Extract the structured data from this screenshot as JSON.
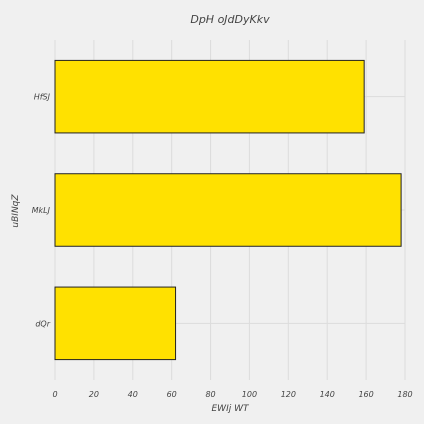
{
  "chart_data": {
    "type": "bar",
    "orientation": "horizontal",
    "title": "DpH oJdDyKkv",
    "xlabel": "EWIj WT",
    "ylabel": "uBINqZ",
    "categories": [
      "HfSJ",
      "MkLJ",
      "dQr"
    ],
    "values": [
      159,
      178,
      62
    ],
    "xlim": [
      0,
      180
    ],
    "xticks": [
      0,
      20,
      40,
      60,
      80,
      100,
      120,
      140,
      160,
      180
    ],
    "grid": true,
    "bar_color": "#ffe100",
    "edge_color": "#222222"
  }
}
